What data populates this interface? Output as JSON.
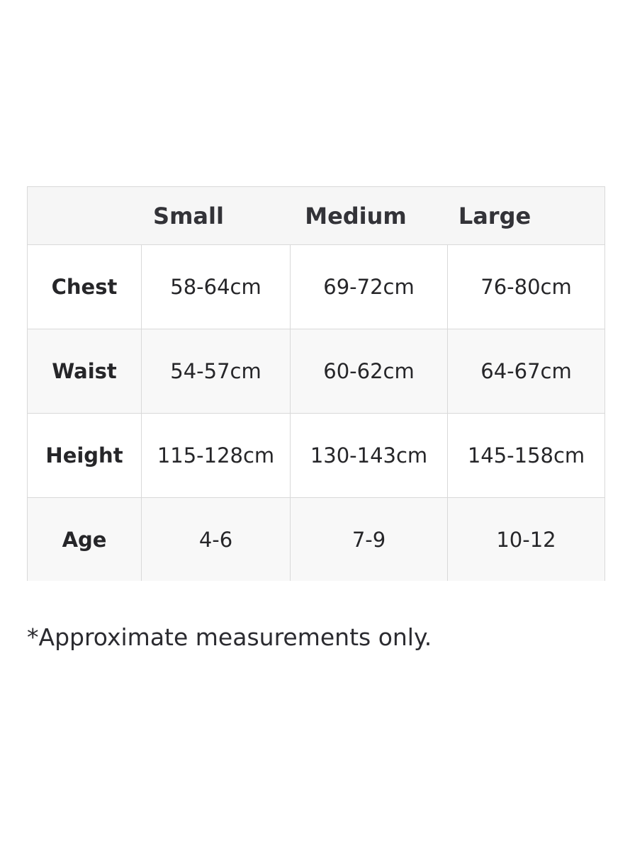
{
  "table": {
    "headers": [
      "Small",
      "Medium",
      "Large"
    ],
    "rows": [
      {
        "label": "Chest",
        "values": [
          "58-64cm",
          "69-72cm",
          "76-80cm"
        ]
      },
      {
        "label": "Waist",
        "values": [
          "54-57cm",
          "60-62cm",
          "64-67cm"
        ]
      },
      {
        "label": "Height",
        "values": [
          "115-128cm",
          "130-143cm",
          "145-158cm"
        ]
      },
      {
        "label": "Age",
        "values": [
          "4-6",
          "7-9",
          "10-12"
        ]
      }
    ]
  },
  "note": "*Approximate measurements only."
}
